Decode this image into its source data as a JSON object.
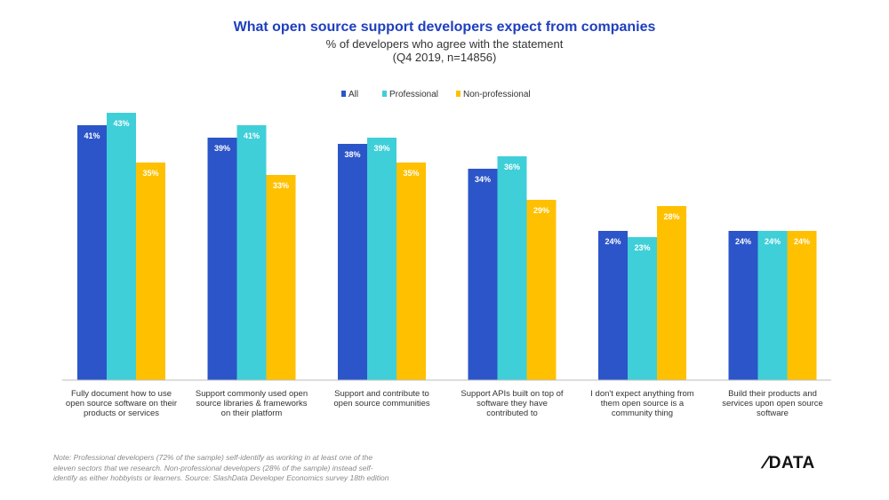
{
  "header": {
    "title": "What open source support developers expect from companies",
    "subtitle_line1": "% of developers who agree with the statement",
    "subtitle_line2": "(Q4 2019, n=14856)"
  },
  "chart_data": {
    "type": "bar",
    "title": "What open source support developers expect from companies",
    "ylim": [
      0,
      45
    ],
    "value_format": "percent",
    "legend_position": "top",
    "grid": false,
    "categories": [
      [
        "Fully document how to use",
        "open source software on their",
        "products or services"
      ],
      [
        "Support commonly used open",
        "source libraries & frameworks",
        "on their platform"
      ],
      [
        "Support and contribute to",
        "open source communities"
      ],
      [
        "Support APIs built on top of",
        "software they have",
        "contributed to"
      ],
      [
        "I don't expect anything from",
        "them open source is a",
        "community thing"
      ],
      [
        "Build their products and",
        "services upon open source",
        "software"
      ]
    ],
    "series": [
      {
        "name": "All",
        "color": "#2b55c8",
        "values": [
          41,
          39,
          38,
          34,
          24,
          24
        ]
      },
      {
        "name": "Professional",
        "color": "#3fcfd8",
        "values": [
          43,
          41,
          39,
          36,
          23,
          24
        ]
      },
      {
        "name": "Non-professional",
        "color": "#ffc000",
        "values": [
          35,
          33,
          35,
          29,
          28,
          24
        ]
      }
    ]
  },
  "footer": {
    "note_line1": "Note: Professional developers (72% of the sample) self-identify as working in at least one of the",
    "note_line2": "eleven sectors that we research. Non-professional developers (28% of the sample) instead self-",
    "note_line3": "identify as either hobbyists or learners. Source: SlashData Developer Economics survey 18th edition",
    "logo_slash": "/",
    "logo_text": "DATA"
  }
}
